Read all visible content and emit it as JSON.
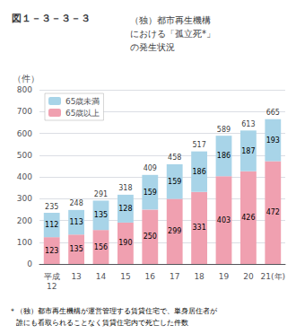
{
  "chart_data": {
    "type": "bar",
    "title": "図１－３－３－３",
    "subtitle": "（独）都市再生機構\nにおける「孤立死*」\nの発生状況",
    "annotations": [
      "＊（独）都市再生機構が運営管理する賃貸住宅で、単身居住者が\n　誰にも看取られることなく賃貸住宅内で死亡した件数"
    ],
    "categories": [
      "平成\n12",
      "13",
      "14",
      "15",
      "16",
      "17",
      "18",
      "19",
      "20",
      "21(年)"
    ],
    "series": [
      {
        "name": "65歳以上",
        "color": "#f0a0b0",
        "values": [
          123,
          135,
          156,
          190,
          250,
          299,
          331,
          403,
          426,
          472
        ]
      },
      {
        "name": "65歳未満",
        "color": "#a8d4e8",
        "values": [
          112,
          113,
          135,
          128,
          159,
          159,
          186,
          186,
          187,
          193
        ]
      }
    ],
    "totals": [
      235,
      248,
      291,
      318,
      409,
      458,
      517,
      589,
      613,
      665
    ],
    "ylabel": "（件）",
    "ylim": [
      0,
      800
    ],
    "yticks": [
      0,
      100,
      200,
      300,
      400,
      500,
      600,
      700,
      800
    ],
    "stacked": true,
    "data_labels": true,
    "grid": true,
    "legend": "upper left"
  }
}
